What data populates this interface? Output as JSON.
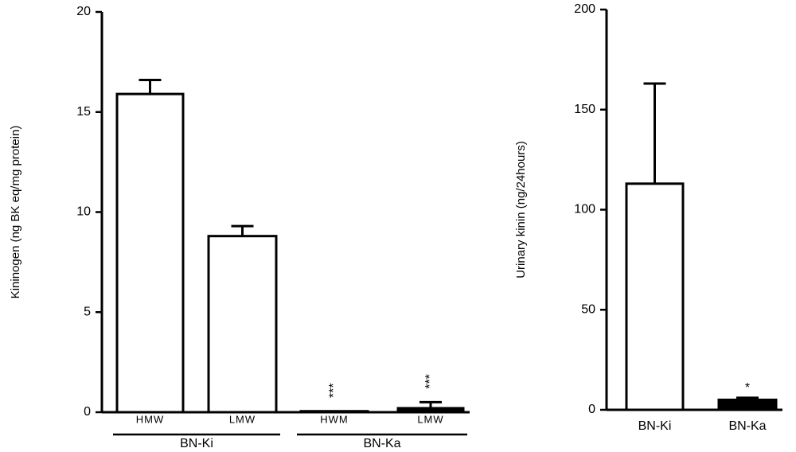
{
  "chart_data": [
    {
      "type": "bar",
      "ylabel": "Kininogen (ng BK eq/mg protein)",
      "categories": [
        "HMW",
        "LMW",
        "HWM",
        "LMW"
      ],
      "groups": [
        "BN-Ki",
        "BN-Ka"
      ],
      "values": [
        15.9,
        8.8,
        0.05,
        0.2
      ],
      "errors": [
        0.7,
        0.5,
        0,
        0.3
      ],
      "value_annotations": [
        null,
        null,
        "***",
        "***"
      ],
      "colors": [
        "#ffffff",
        "#ffffff",
        "#000000",
        "#000000"
      ],
      "ylim": [
        0,
        20
      ],
      "yticks": [
        0,
        5,
        10,
        15,
        20
      ]
    },
    {
      "type": "bar",
      "ylabel": "Urinary kinin (ng/24hours)",
      "categories": [
        "BN-Ki",
        "BN-Ka"
      ],
      "values": [
        113,
        5
      ],
      "errors": [
        50,
        1
      ],
      "value_annotations": [
        null,
        "*"
      ],
      "colors": [
        "#ffffff",
        "#000000"
      ],
      "ylim": [
        0,
        200
      ],
      "yticks": [
        0,
        50,
        100,
        150,
        200
      ]
    }
  ]
}
